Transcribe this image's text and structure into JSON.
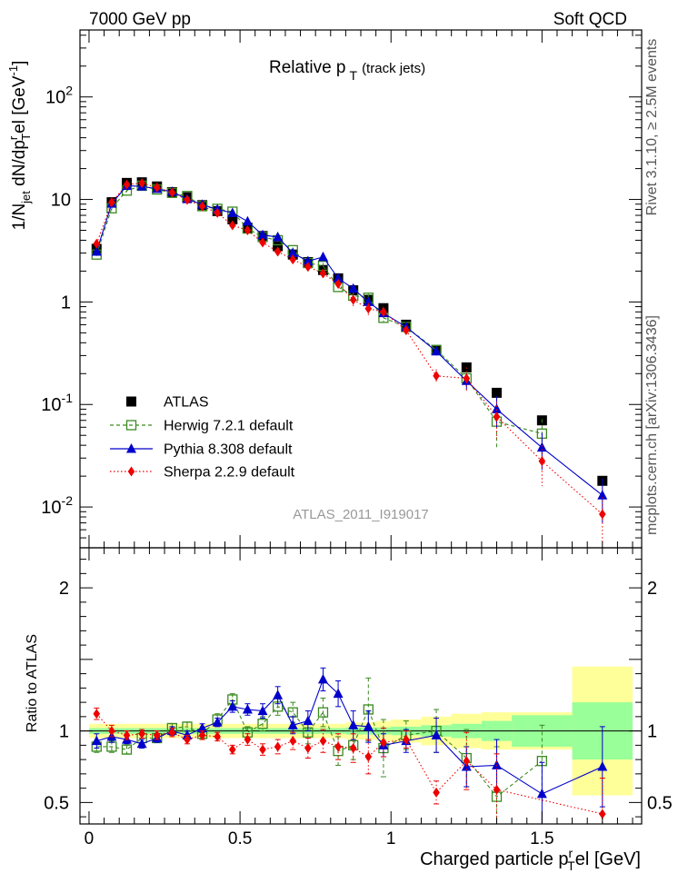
{
  "header": {
    "left": "7000 GeV pp",
    "right": "Soft QCD"
  },
  "side_labels": {
    "rivet": "Rivet 3.1.10, ≥ 2.5M events",
    "mcplots": "mcplots.cern.ch [arXiv:1306.3436]"
  },
  "watermark": "ATLAS_2011_I919017",
  "chart_data": [
    {
      "type": "scatter",
      "panel": "main",
      "title": "Relative p_T (track jets)",
      "title_main": "Relative p",
      "title_sub": "T",
      "title_tail": "(track jets)",
      "ylabel": "1/N_jet dN/dp_T^r el [GeV^-1]",
      "ylabel_parts": {
        "a": "1/N",
        "a_sub": "jet",
        "b": " dN/dp",
        "b_sup": "r",
        "b_sub": "T",
        "c": "el [GeV",
        "c_sup": "-1",
        "d": "]"
      },
      "yscale": "log",
      "ylim": [
        0.004,
        450
      ],
      "xlim": [
        -0.03,
        1.83
      ],
      "yticks": [
        {
          "value": 0.01,
          "base": "10",
          "exp": "-2"
        },
        {
          "value": 0.1,
          "base": "10",
          "exp": "-1"
        },
        {
          "value": 1,
          "base": "1",
          "exp": ""
        },
        {
          "value": 10,
          "base": "10",
          "exp": ""
        },
        {
          "value": 100,
          "base": "10",
          "exp": "2"
        }
      ],
      "x": [
        0.025,
        0.075,
        0.125,
        0.175,
        0.225,
        0.275,
        0.325,
        0.375,
        0.425,
        0.475,
        0.525,
        0.575,
        0.625,
        0.675,
        0.725,
        0.775,
        0.825,
        0.875,
        0.925,
        0.975,
        1.05,
        1.15,
        1.25,
        1.35,
        1.5,
        1.7
      ],
      "series": [
        {
          "name": "ATLAS",
          "color": "#000000",
          "marker": "filled-square",
          "line": "none",
          "values": [
            3.3,
            9.4,
            14.5,
            14.7,
            13.4,
            11.8,
            10.5,
            8.8,
            7.7,
            6.4,
            5.3,
            4.4,
            3.5,
            2.9,
            2.45,
            2.05,
            1.7,
            1.3,
            1.05,
            0.87,
            0.6,
            0.34,
            0.23,
            0.13,
            0.07,
            0.018
          ]
        },
        {
          "name": "Herwig 7.2.1 default",
          "color": "#3a8a1f",
          "marker": "open-square",
          "line": "dashed",
          "values": [
            2.9,
            8.2,
            12.2,
            13.6,
            12.5,
            11.6,
            10.8,
            8.6,
            8.1,
            7.6,
            5.2,
            4.3,
            4.0,
            3.2,
            2.4,
            2.25,
            1.4,
            1.15,
            1.1,
            0.7,
            0.57,
            0.34,
            0.18,
            0.068,
            0.052,
            null
          ],
          "errors": [
            0.15,
            0.3,
            0.4,
            0.4,
            0.4,
            0.3,
            0.3,
            0.3,
            0.3,
            0.3,
            0.2,
            0.2,
            0.2,
            0.2,
            0.15,
            0.15,
            0.1,
            0.1,
            0.1,
            0.06,
            0.05,
            0.04,
            0.03,
            0.03,
            0.02,
            null
          ]
        },
        {
          "name": "Pythia 8.308 default",
          "color": "#0000cc",
          "marker": "filled-triangle",
          "line": "solid",
          "values": [
            3.1,
            9.1,
            13.6,
            13.4,
            12.7,
            11.9,
            10.1,
            8.9,
            8.0,
            7.4,
            6.1,
            4.5,
            4.3,
            3.0,
            2.5,
            2.75,
            1.7,
            1.35,
            1.0,
            0.78,
            0.57,
            0.33,
            0.17,
            0.09,
            0.038,
            0.013
          ],
          "errors": [
            0.1,
            0.2,
            0.3,
            0.3,
            0.3,
            0.3,
            0.2,
            0.2,
            0.2,
            0.2,
            0.2,
            0.15,
            0.15,
            0.1,
            0.1,
            0.1,
            0.08,
            0.07,
            0.06,
            0.05,
            0.04,
            0.03,
            0.03,
            0.03,
            0.015,
            0.006
          ]
        },
        {
          "name": "Sherpa 2.2.9 default",
          "color": "#ee0000",
          "marker": "filled-diamond",
          "line": "dotted",
          "values": [
            3.7,
            9.4,
            14.0,
            14.4,
            13.1,
            11.7,
            9.9,
            8.6,
            7.4,
            5.6,
            5.0,
            3.8,
            3.1,
            2.6,
            2.2,
            1.9,
            1.5,
            1.05,
            0.86,
            0.8,
            0.53,
            0.19,
            0.18,
            0.076,
            0.028,
            0.0085
          ],
          "errors": [
            0.2,
            0.3,
            0.4,
            0.4,
            0.4,
            0.3,
            0.3,
            0.3,
            0.3,
            0.3,
            0.2,
            0.2,
            0.2,
            0.2,
            0.2,
            0.2,
            0.15,
            0.15,
            0.12,
            0.1,
            0.05,
            0.03,
            0.05,
            0.03,
            0.012,
            0.004
          ]
        }
      ],
      "legend": {
        "placement": "left"
      }
    },
    {
      "type": "scatter",
      "panel": "ratio",
      "ylabel": "Ratio to ATLAS",
      "xlabel": "Charged particle p_T^r el [GeV]",
      "xlabel_parts": {
        "a": "Charged particle p",
        "a_sub": "T",
        "a_sup": "r",
        "b": "el [GeV]"
      },
      "ylim": [
        0.35,
        2.28
      ],
      "xlim": [
        -0.03,
        1.83
      ],
      "yticks": [
        0.5,
        1,
        2
      ],
      "xticks": [
        0,
        0.5,
        1,
        1.5
      ],
      "xtick_labels": [
        "0",
        "0.5",
        "1",
        "1.5"
      ],
      "ytick_labels": [
        "0.5",
        "1",
        "2"
      ],
      "bins": [
        {
          "lo": 0.0,
          "hi": 0.05,
          "stat": 0.02,
          "tot": 0.05
        },
        {
          "lo": 0.05,
          "hi": 0.1,
          "stat": 0.02,
          "tot": 0.05
        },
        {
          "lo": 0.1,
          "hi": 0.15,
          "stat": 0.02,
          "tot": 0.05
        },
        {
          "lo": 0.15,
          "hi": 0.2,
          "stat": 0.02,
          "tot": 0.05
        },
        {
          "lo": 0.2,
          "hi": 0.25,
          "stat": 0.02,
          "tot": 0.05
        },
        {
          "lo": 0.25,
          "hi": 0.3,
          "stat": 0.02,
          "tot": 0.05
        },
        {
          "lo": 0.3,
          "hi": 0.35,
          "stat": 0.02,
          "tot": 0.05
        },
        {
          "lo": 0.35,
          "hi": 0.4,
          "stat": 0.02,
          "tot": 0.05
        },
        {
          "lo": 0.4,
          "hi": 0.45,
          "stat": 0.02,
          "tot": 0.05
        },
        {
          "lo": 0.45,
          "hi": 0.5,
          "stat": 0.02,
          "tot": 0.05
        },
        {
          "lo": 0.5,
          "hi": 0.55,
          "stat": 0.02,
          "tot": 0.05
        },
        {
          "lo": 0.55,
          "hi": 0.6,
          "stat": 0.02,
          "tot": 0.05
        },
        {
          "lo": 0.6,
          "hi": 0.65,
          "stat": 0.02,
          "tot": 0.05
        },
        {
          "lo": 0.65,
          "hi": 0.7,
          "stat": 0.02,
          "tot": 0.05
        },
        {
          "lo": 0.7,
          "hi": 0.75,
          "stat": 0.02,
          "tot": 0.05
        },
        {
          "lo": 0.75,
          "hi": 0.8,
          "stat": 0.02,
          "tot": 0.05
        },
        {
          "lo": 0.8,
          "hi": 0.85,
          "stat": 0.02,
          "tot": 0.05
        },
        {
          "lo": 0.85,
          "hi": 0.9,
          "stat": 0.025,
          "tot": 0.06
        },
        {
          "lo": 0.9,
          "hi": 0.95,
          "stat": 0.025,
          "tot": 0.06
        },
        {
          "lo": 0.95,
          "hi": 1.0,
          "stat": 0.025,
          "tot": 0.07
        },
        {
          "lo": 1.0,
          "hi": 1.1,
          "stat": 0.03,
          "tot": 0.08
        },
        {
          "lo": 1.1,
          "hi": 1.2,
          "stat": 0.04,
          "tot": 0.1
        },
        {
          "lo": 1.2,
          "hi": 1.3,
          "stat": 0.05,
          "tot": 0.12
        },
        {
          "lo": 1.3,
          "hi": 1.4,
          "stat": 0.07,
          "tot": 0.13
        },
        {
          "lo": 1.4,
          "hi": 1.6,
          "stat": 0.11,
          "tot": 0.13
        },
        {
          "lo": 1.6,
          "hi": 1.8,
          "stat": 0.2,
          "tot": 0.45
        }
      ],
      "x": [
        0.025,
        0.075,
        0.125,
        0.175,
        0.225,
        0.275,
        0.325,
        0.375,
        0.425,
        0.475,
        0.525,
        0.575,
        0.625,
        0.675,
        0.725,
        0.775,
        0.825,
        0.875,
        0.925,
        0.975,
        1.05,
        1.15,
        1.25,
        1.35,
        1.5,
        1.7
      ],
      "series": [
        {
          "name": "Herwig 7.2.1 default",
          "color": "#3a8a1f",
          "marker": "open-square",
          "line": "dashed",
          "values": [
            0.89,
            0.89,
            0.87,
            0.95,
            0.95,
            1.02,
            1.03,
            0.98,
            1.08,
            1.22,
            0.99,
            1.05,
            1.17,
            1.13,
            0.99,
            1.13,
            0.86,
            0.9,
            1.15,
            0.88,
            0.97,
            1.0,
            0.81,
            0.54,
            0.79,
            null
          ],
          "errors": [
            0.04,
            0.04,
            0.03,
            0.03,
            0.03,
            0.03,
            0.03,
            0.03,
            0.04,
            0.04,
            0.04,
            0.05,
            0.06,
            0.07,
            0.08,
            0.1,
            0.1,
            0.1,
            0.22,
            0.2,
            0.1,
            0.15,
            0.2,
            0.35,
            0.25,
            null
          ]
        },
        {
          "name": "Pythia 8.308 default",
          "color": "#0000cc",
          "marker": "filled-triangle",
          "line": "solid",
          "values": [
            0.93,
            0.96,
            0.94,
            0.91,
            0.95,
            1.0,
            0.97,
            1.02,
            1.06,
            1.17,
            1.15,
            1.14,
            1.25,
            1.04,
            1.07,
            1.36,
            1.26,
            1.04,
            1.03,
            0.9,
            0.93,
            0.97,
            0.75,
            0.76,
            0.56,
            0.75
          ],
          "errors": [
            0.05,
            0.04,
            0.03,
            0.03,
            0.03,
            0.03,
            0.03,
            0.03,
            0.03,
            0.04,
            0.04,
            0.05,
            0.06,
            0.06,
            0.07,
            0.08,
            0.09,
            0.1,
            0.11,
            0.08,
            0.08,
            0.12,
            0.14,
            0.18,
            0.22,
            0.28
          ]
        },
        {
          "name": "Sherpa 2.2.9 default",
          "color": "#ee0000",
          "marker": "filled-diamond",
          "line": "dotted",
          "values": [
            1.12,
            1.0,
            0.97,
            0.98,
            0.97,
            0.99,
            0.94,
            0.97,
            0.96,
            0.87,
            0.94,
            0.87,
            0.89,
            0.93,
            0.88,
            0.93,
            0.89,
            0.88,
            0.82,
            0.92,
            0.94,
            0.57,
            0.79,
            0.59,
            null,
            0.42
          ],
          "errors": [
            0.04,
            0.04,
            0.03,
            0.03,
            0.03,
            0.03,
            0.03,
            0.03,
            0.03,
            0.03,
            0.04,
            0.04,
            0.05,
            0.06,
            0.07,
            0.08,
            0.09,
            0.1,
            0.12,
            0.1,
            0.06,
            0.08,
            0.2,
            0.25,
            null,
            0.25
          ]
        }
      ]
    }
  ]
}
